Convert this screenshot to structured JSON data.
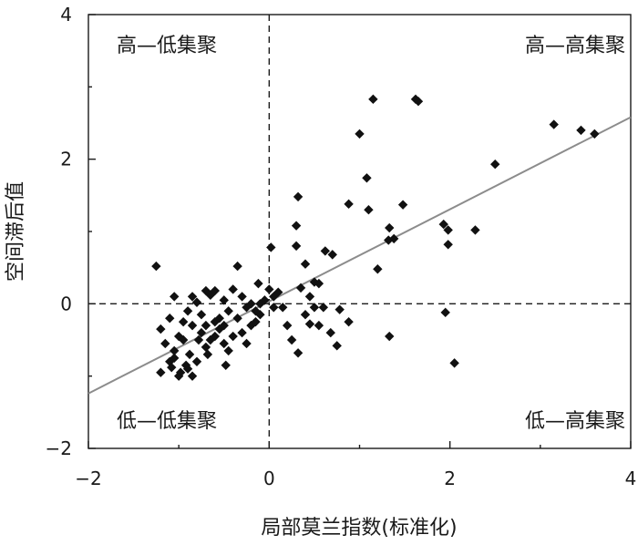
{
  "chart_data": {
    "type": "scatter",
    "xlabel": "局部莫兰指数(标准化)",
    "ylabel": "空间滞后值",
    "xlim": [
      -2,
      4
    ],
    "ylim": [
      -2,
      4
    ],
    "x_ticks": [
      {
        "value": -2,
        "label": "−2"
      },
      {
        "value": 0,
        "label": "0"
      },
      {
        "value": 2,
        "label": "2"
      },
      {
        "value": 4,
        "label": "4"
      }
    ],
    "y_ticks": [
      {
        "value": -2,
        "label": "−2"
      },
      {
        "value": 0,
        "label": "0"
      },
      {
        "value": 2,
        "label": "2"
      },
      {
        "value": 4,
        "label": "4"
      }
    ],
    "quadrant_labels": {
      "top_left": "高—低集聚",
      "top_right": "高—高集聚",
      "bottom_left": "低—低集聚",
      "bottom_right": "低—高集聚"
    },
    "reference_lines": {
      "x": 0,
      "y": 0
    },
    "fit_line": {
      "x": [
        -2,
        4
      ],
      "y": [
        -1.24,
        2.58
      ]
    },
    "points": [
      [
        -1.25,
        0.52
      ],
      [
        -1.05,
        0.1
      ],
      [
        -0.85,
        0.1
      ],
      [
        -0.7,
        0.18
      ],
      [
        -0.65,
        0.12
      ],
      [
        -0.35,
        0.52
      ],
      [
        -0.12,
        0.28
      ],
      [
        0.1,
        0.16
      ],
      [
        0.05,
        0.1
      ],
      [
        -0.05,
        0.05
      ],
      [
        -0.1,
        0.0
      ],
      [
        0.0,
        0.2
      ],
      [
        -0.3,
        0.1
      ],
      [
        -0.5,
        0.05
      ],
      [
        -0.45,
        -0.1
      ],
      [
        -0.25,
        -0.05
      ],
      [
        -0.4,
        0.2
      ],
      [
        -0.6,
        0.18
      ],
      [
        -0.8,
        0.02
      ],
      [
        -0.2,
        0.0
      ],
      [
        -0.9,
        -0.1
      ],
      [
        -0.75,
        -0.15
      ],
      [
        -1.1,
        -0.2
      ],
      [
        -1.2,
        -0.35
      ],
      [
        -1.0,
        -0.45
      ],
      [
        -0.95,
        -0.5
      ],
      [
        -1.15,
        -0.55
      ],
      [
        -1.05,
        -0.75
      ],
      [
        -1.1,
        -0.8
      ],
      [
        -0.98,
        -0.95
      ],
      [
        -1.0,
        -1.0
      ],
      [
        -1.2,
        -0.95
      ],
      [
        -1.08,
        -0.88
      ],
      [
        -0.92,
        -0.85
      ],
      [
        -0.85,
        -1.0
      ],
      [
        -0.9,
        -0.9
      ],
      [
        -0.8,
        -0.8
      ],
      [
        -0.7,
        -0.6
      ],
      [
        -0.65,
        -0.5
      ],
      [
        -0.6,
        -0.45
      ],
      [
        -0.55,
        -0.35
      ],
      [
        -0.5,
        -0.55
      ],
      [
        -0.45,
        -0.65
      ],
      [
        -0.4,
        -0.45
      ],
      [
        -0.3,
        -0.4
      ],
      [
        -0.2,
        -0.3
      ],
      [
        -0.15,
        -0.25
      ],
      [
        -0.1,
        -0.15
      ],
      [
        -0.7,
        -0.3
      ],
      [
        -0.75,
        -0.4
      ],
      [
        -0.6,
        -0.25
      ],
      [
        -0.55,
        -0.2
      ],
      [
        -0.5,
        -0.3
      ],
      [
        -0.85,
        -0.3
      ],
      [
        -0.95,
        -0.25
      ],
      [
        -1.05,
        -0.65
      ],
      [
        -0.88,
        -0.7
      ],
      [
        -0.78,
        -0.5
      ],
      [
        -0.68,
        -0.7
      ],
      [
        -0.48,
        -0.85
      ],
      [
        -0.25,
        -0.55
      ],
      [
        -0.35,
        -0.2
      ],
      [
        -0.15,
        -0.1
      ],
      [
        0.05,
        -0.05
      ],
      [
        0.02,
        0.78
      ],
      [
        0.3,
        0.8
      ],
      [
        0.4,
        0.55
      ],
      [
        0.5,
        0.3
      ],
      [
        0.55,
        0.28
      ],
      [
        0.45,
        0.1
      ],
      [
        0.35,
        0.22
      ],
      [
        0.5,
        -0.05
      ],
      [
        0.6,
        -0.05
      ],
      [
        0.7,
        0.68
      ],
      [
        0.62,
        0.73
      ],
      [
        0.3,
        1.08
      ],
      [
        0.32,
        1.48
      ],
      [
        0.2,
        -0.3
      ],
      [
        0.25,
        -0.5
      ],
      [
        0.32,
        -0.68
      ],
      [
        0.45,
        -0.28
      ],
      [
        0.55,
        -0.3
      ],
      [
        0.68,
        -0.4
      ],
      [
        0.75,
        -0.58
      ],
      [
        0.88,
        -0.25
      ],
      [
        0.78,
        -0.08
      ],
      [
        0.4,
        -0.15
      ],
      [
        0.15,
        -0.05
      ],
      [
        1.0,
        2.35
      ],
      [
        1.15,
        2.83
      ],
      [
        1.08,
        1.74
      ],
      [
        1.1,
        1.3
      ],
      [
        0.88,
        1.38
      ],
      [
        1.2,
        0.48
      ],
      [
        1.32,
        0.88
      ],
      [
        1.38,
        0.9
      ],
      [
        1.33,
        1.05
      ],
      [
        1.48,
        1.37
      ],
      [
        1.33,
        -0.45
      ],
      [
        1.62,
        2.83
      ],
      [
        1.65,
        2.8
      ],
      [
        1.93,
        1.1
      ],
      [
        1.98,
        0.82
      ],
      [
        1.98,
        1.02
      ],
      [
        2.05,
        -0.82
      ],
      [
        1.95,
        -0.12
      ],
      [
        2.28,
        1.02
      ],
      [
        2.5,
        1.93
      ],
      [
        3.15,
        2.48
      ],
      [
        3.45,
        2.4
      ],
      [
        3.6,
        2.35
      ]
    ]
  }
}
